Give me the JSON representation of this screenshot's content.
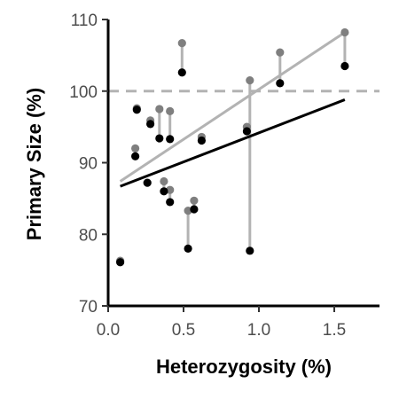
{
  "chart_data": {
    "type": "scatter",
    "xlabel": "Heterozygosity (%)",
    "ylabel": "Primary Size (%)",
    "xlim": [
      0,
      1.8
    ],
    "ylim": [
      70,
      110
    ],
    "x_ticks": [
      0.0,
      0.5,
      1.0,
      1.5
    ],
    "x_tick_labels": [
      "0.0",
      "0.5",
      "1.0",
      "1.5"
    ],
    "y_ticks": [
      70,
      80,
      90,
      100,
      110
    ],
    "y_tick_labels": [
      "70",
      "80",
      "90",
      "100",
      "110"
    ],
    "reference_line": {
      "y": 100,
      "style": "dashed",
      "color": "#b3b3b3"
    },
    "grid": false,
    "series": [
      {
        "color": "#7f7f7f",
        "points": [
          [
            0.08,
            76.3
          ],
          [
            0.18,
            92.0
          ],
          [
            0.19,
            97.6
          ],
          [
            0.28,
            95.9
          ],
          [
            0.34,
            97.5
          ],
          [
            0.37,
            87.4
          ],
          [
            0.41,
            97.2
          ],
          [
            0.41,
            86.2
          ],
          [
            0.49,
            106.7
          ],
          [
            0.53,
            83.3
          ],
          [
            0.57,
            84.7
          ],
          [
            0.62,
            93.6
          ],
          [
            0.92,
            95.0
          ],
          [
            0.94,
            101.5
          ],
          [
            1.14,
            105.4
          ],
          [
            1.57,
            108.2
          ]
        ],
        "trend": {
          "x": [
            0.08,
            1.57
          ],
          "y": [
            87.4,
            108.2
          ],
          "color": "#b3b3b3"
        }
      },
      {
        "color": "#000000",
        "points": [
          [
            0.08,
            76.1
          ],
          [
            0.18,
            90.9
          ],
          [
            0.19,
            97.4
          ],
          [
            0.26,
            87.2
          ],
          [
            0.28,
            95.4
          ],
          [
            0.34,
            93.4
          ],
          [
            0.37,
            86.0
          ],
          [
            0.41,
            93.3
          ],
          [
            0.41,
            84.5
          ],
          [
            0.49,
            102.6
          ],
          [
            0.53,
            78.0
          ],
          [
            0.57,
            83.5
          ],
          [
            0.62,
            93.1
          ],
          [
            0.92,
            94.4
          ],
          [
            0.94,
            77.7
          ],
          [
            1.14,
            101.1
          ],
          [
            1.57,
            103.5
          ]
        ],
        "trend": {
          "x": [
            0.08,
            1.57
          ],
          "y": [
            86.7,
            98.8
          ],
          "color": "#000000"
        }
      }
    ],
    "pairs": [
      [
        0.08,
        76.3,
        76.1
      ],
      [
        0.18,
        92.0,
        90.9
      ],
      [
        0.19,
        97.6,
        97.4
      ],
      [
        0.28,
        95.9,
        95.4
      ],
      [
        0.34,
        97.5,
        93.4
      ],
      [
        0.37,
        87.4,
        86.0
      ],
      [
        0.41,
        97.2,
        93.3
      ],
      [
        0.41,
        86.2,
        84.5
      ],
      [
        0.49,
        106.7,
        102.6
      ],
      [
        0.53,
        83.3,
        78.0
      ],
      [
        0.57,
        84.7,
        83.5
      ],
      [
        0.62,
        93.6,
        93.1
      ],
      [
        0.92,
        95.0,
        94.4
      ],
      [
        0.94,
        101.5,
        77.7
      ],
      [
        1.14,
        105.4,
        101.1
      ],
      [
        1.57,
        108.2,
        103.5
      ]
    ]
  }
}
